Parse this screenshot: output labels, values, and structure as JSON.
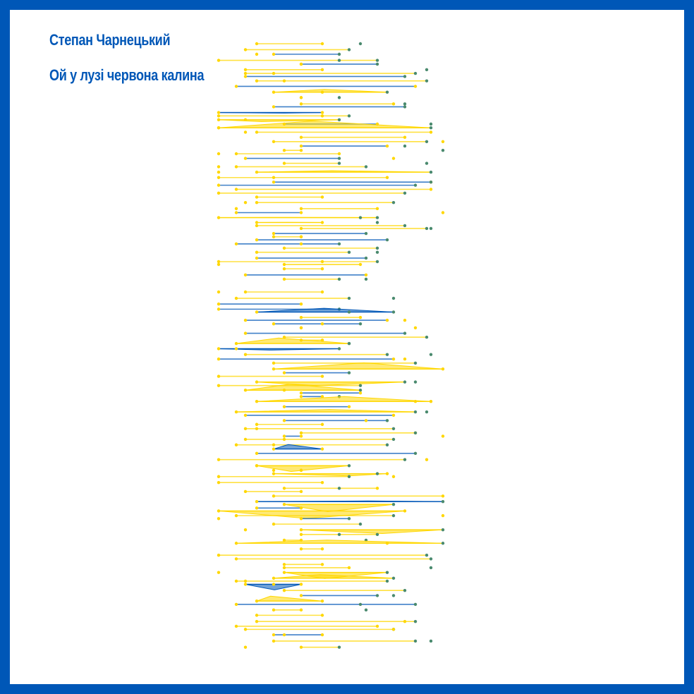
{
  "author": "Степан Чарнецький",
  "song": "Ой у лузі червона калина",
  "colors": {
    "frame": "#0057b7",
    "background": "#ffffff",
    "yellow": "#ffd700",
    "blue": "#0057b7",
    "node": "#4a8a6e"
  }
}
